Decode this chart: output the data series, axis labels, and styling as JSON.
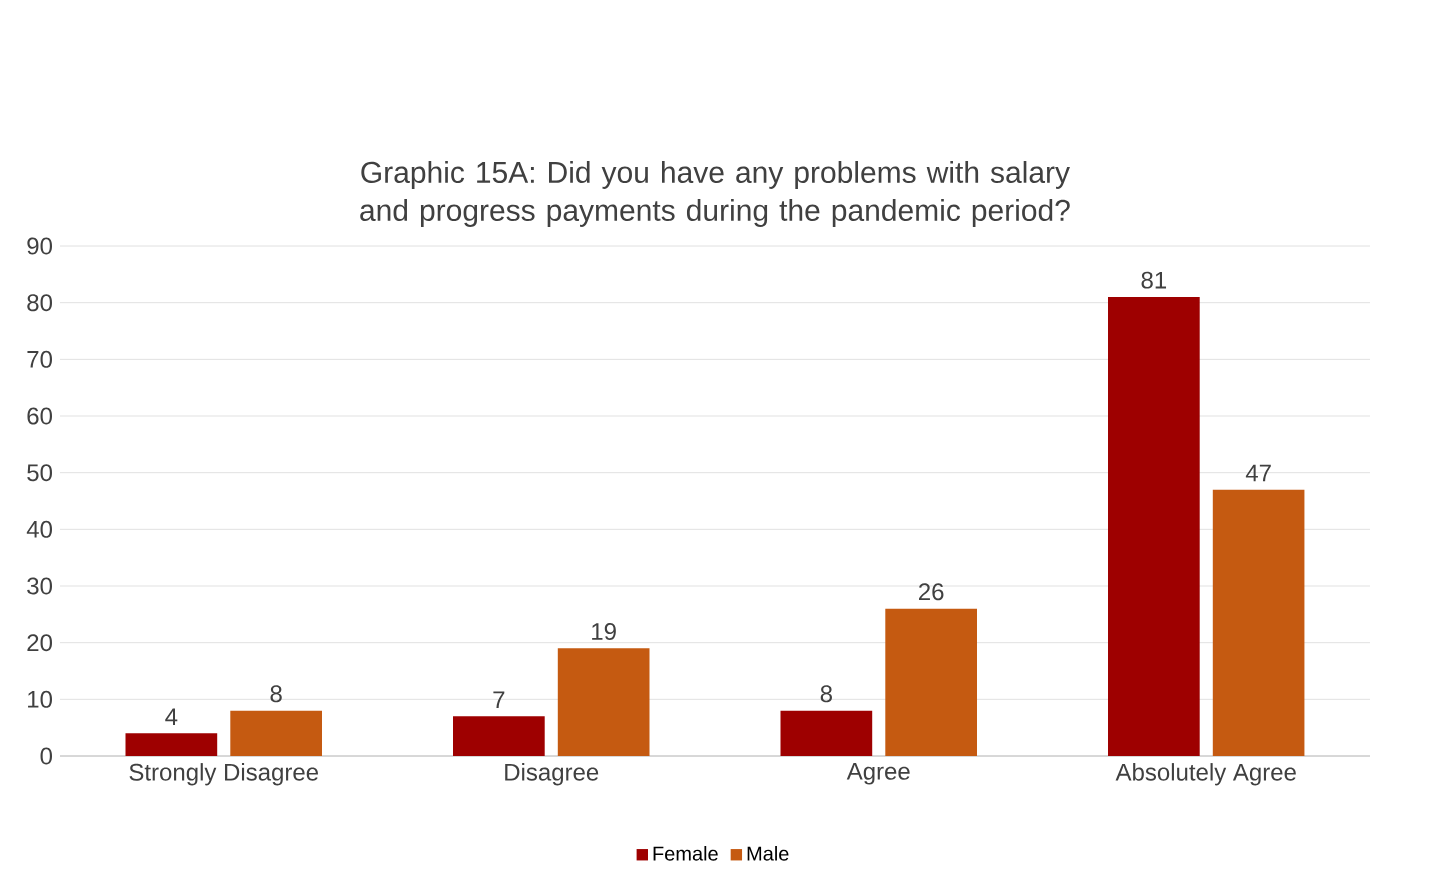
{
  "chart_data": {
    "type": "bar",
    "title": "Graphic 15A: Did you have any problems with salary and progress payments during the pandemic period?",
    "categories": [
      "Strongly Disagree",
      "Disagree",
      "Agree",
      "Absolutely Agree"
    ],
    "series": [
      {
        "name": "Female",
        "color": "#9e0000",
        "values": [
          4,
          7,
          8,
          81
        ]
      },
      {
        "name": "Male",
        "color": "#c55a11",
        "values": [
          8,
          19,
          26,
          47
        ]
      }
    ],
    "ylim": [
      0,
      90
    ],
    "yticks": [
      0,
      10,
      20,
      30,
      40,
      50,
      60,
      70,
      80,
      90
    ],
    "grid": "y",
    "legend": "bottom",
    "data_labels": true
  }
}
